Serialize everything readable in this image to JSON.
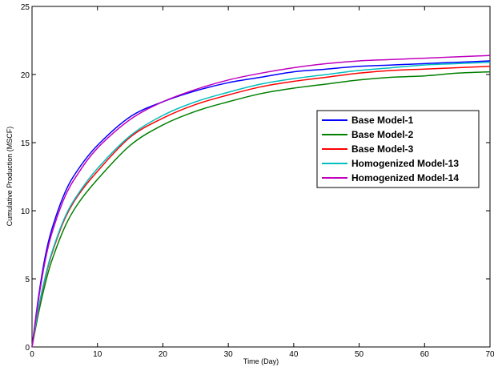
{
  "chart_data": {
    "type": "line",
    "xlabel": "Time (Day)",
    "ylabel": "Cumulative Production (MSCF)",
    "xlim": [
      0,
      70
    ],
    "ylim": [
      0,
      25
    ],
    "x_ticks": [
      0,
      10,
      20,
      30,
      40,
      50,
      60,
      70
    ],
    "y_ticks": [
      0,
      5,
      10,
      15,
      20,
      25
    ],
    "grid": false,
    "legend_position": "center-right",
    "x": [
      0,
      1,
      2,
      3,
      5,
      7,
      10,
      15,
      20,
      25,
      30,
      35,
      40,
      45,
      50,
      55,
      60,
      65,
      70
    ],
    "series": [
      {
        "name": "Base Model-1",
        "color": "#0000ff",
        "values": [
          0,
          3.7,
          6.6,
          8.6,
          11.3,
          13.0,
          14.8,
          16.9,
          18.0,
          18.8,
          19.4,
          19.8,
          20.2,
          20.4,
          20.6,
          20.7,
          20.8,
          20.9,
          21.0
        ]
      },
      {
        "name": "Base Model-2",
        "color": "#008000",
        "values": [
          0,
          2.5,
          4.6,
          6.3,
          8.8,
          10.5,
          12.3,
          14.8,
          16.3,
          17.3,
          18.0,
          18.6,
          19.0,
          19.3,
          19.6,
          19.8,
          19.9,
          20.1,
          20.2
        ]
      },
      {
        "name": "Base Model-3",
        "color": "#ff0000",
        "values": [
          0,
          2.8,
          5.0,
          6.8,
          9.4,
          11.1,
          12.9,
          15.4,
          16.8,
          17.8,
          18.5,
          19.1,
          19.5,
          19.8,
          20.1,
          20.3,
          20.4,
          20.5,
          20.6
        ]
      },
      {
        "name": "Homogenized Model-13",
        "color": "#00bfbf",
        "values": [
          0,
          2.9,
          5.1,
          6.9,
          9.5,
          11.2,
          13.1,
          15.5,
          17.0,
          18.0,
          18.7,
          19.3,
          19.7,
          20.0,
          20.3,
          20.5,
          20.7,
          20.8,
          20.9
        ]
      },
      {
        "name": "Homogenized Model-14",
        "color": "#bf00bf",
        "values": [
          0,
          3.5,
          6.3,
          8.3,
          11.0,
          12.7,
          14.6,
          16.7,
          18.0,
          18.9,
          19.6,
          20.1,
          20.5,
          20.8,
          21.0,
          21.1,
          21.2,
          21.3,
          21.4
        ]
      }
    ]
  }
}
